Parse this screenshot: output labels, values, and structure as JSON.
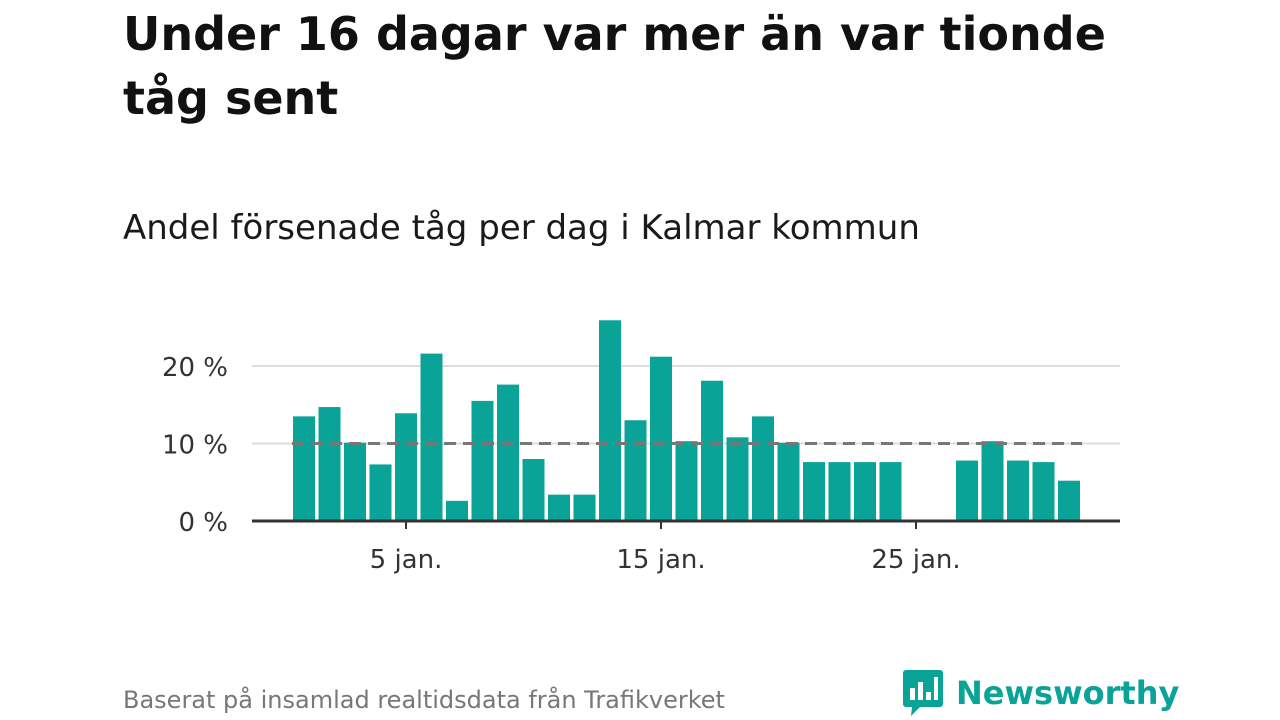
{
  "header": {
    "title": "Under 16 dagar var mer än var tionde tåg sent",
    "subtitle": "Andel försenade tåg per dag i Kalmar kommun"
  },
  "footer": {
    "source": "Baserat på insamlad realtidsdata från Trafikverket"
  },
  "brand": {
    "name": "Newsworthy",
    "logo_icon": "bar-chart-speech-bubble-icon",
    "color": "#0aa398"
  },
  "chart_data": {
    "type": "bar",
    "title": "Andel försenade tåg per dag i Kalmar kommun",
    "xlabel": "",
    "ylabel": "",
    "x": [
      1,
      2,
      3,
      4,
      5,
      6,
      7,
      8,
      9,
      10,
      11,
      12,
      13,
      14,
      15,
      16,
      17,
      18,
      19,
      20,
      21,
      22,
      23,
      24,
      25,
      26,
      27,
      28,
      29,
      30,
      31
    ],
    "values": [
      13.5,
      14.7,
      10.1,
      7.3,
      13.9,
      21.6,
      2.6,
      15.5,
      17.6,
      8.0,
      3.4,
      3.4,
      25.9,
      13.0,
      21.2,
      10.3,
      18.1,
      10.8,
      13.5,
      10.1,
      7.6,
      7.6,
      7.6,
      7.6,
      0,
      0,
      7.8,
      10.3,
      7.8,
      7.6,
      5.2
    ],
    "ylim": [
      0,
      27
    ],
    "yticks": [
      0,
      10,
      20
    ],
    "ytick_labels": [
      "0 %",
      "10 %",
      "20 %"
    ],
    "xticks": [
      5,
      15,
      25
    ],
    "xtick_labels": [
      "5 jan.",
      "15 jan.",
      "25 jan."
    ],
    "reference_line": {
      "value": 10,
      "style": "dashed"
    },
    "grid": true,
    "colors": {
      "bar": "#0aa398",
      "reference": "#777777",
      "grid": "#dddddd",
      "axis": "#333333"
    }
  }
}
